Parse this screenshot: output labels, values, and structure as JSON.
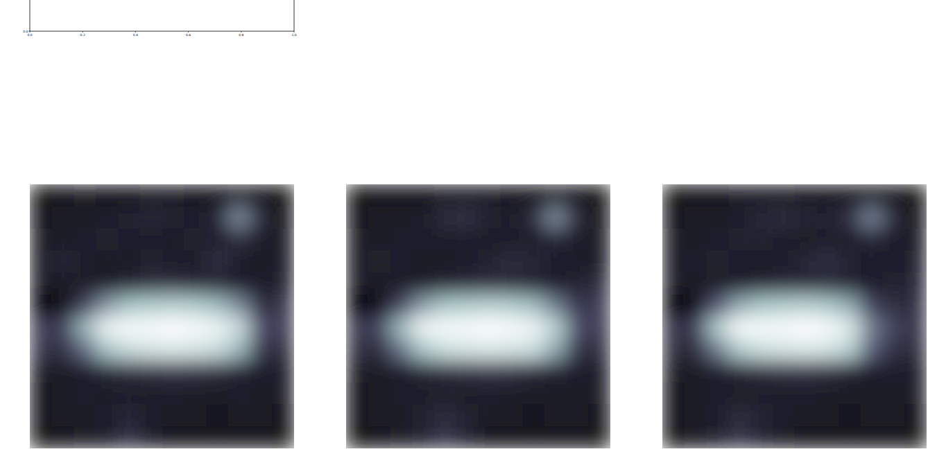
{
  "chart_data": [
    {
      "type": "line",
      "xlim": [
        0,
        1
      ],
      "ylim": [
        0,
        1
      ],
      "xticks": [
        {
          "value": 0,
          "label": "0.0"
        },
        {
          "value": 0.2,
          "label": "0.2"
        },
        {
          "value": 0.4,
          "label": "0.4"
        },
        {
          "value": 0.6,
          "label": "0.6"
        },
        {
          "value": 0.8,
          "label": "0.8"
        },
        {
          "value": 1,
          "label": "1.0"
        }
      ],
      "yticks": [
        {
          "value": 0,
          "label": "0.0"
        }
      ]
    },
    {
      "type": "heatmap",
      "color": "bone",
      "tick_labels": false,
      "cells": [
        [
          0.08,
          0.1,
          0.12,
          0.1,
          0.1,
          0.12,
          0.12,
          0.1,
          0.1,
          0.12,
          0.1,
          0.08
        ],
        [
          0.1,
          0.12,
          0.12,
          0.14,
          0.16,
          0.18,
          0.16,
          0.14,
          0.18,
          0.55,
          0.2,
          0.1
        ],
        [
          0.12,
          0.12,
          0.14,
          0.16,
          0.14,
          0.14,
          0.12,
          0.16,
          0.14,
          0.2,
          0.14,
          0.12
        ],
        [
          0.12,
          0.18,
          0.14,
          0.12,
          0.12,
          0.16,
          0.14,
          0.12,
          0.22,
          0.14,
          0.12,
          0.14
        ],
        [
          0.14,
          0.12,
          0.12,
          0.14,
          0.16,
          0.2,
          0.2,
          0.18,
          0.16,
          0.14,
          0.14,
          0.16
        ],
        [
          0.0,
          0.04,
          0.3,
          0.6,
          0.75,
          0.78,
          0.8,
          0.78,
          0.72,
          0.55,
          0.2,
          0.25
        ],
        [
          0.28,
          0.3,
          0.7,
          0.95,
          0.98,
          0.98,
          1.0,
          0.98,
          0.95,
          0.85,
          0.35,
          0.28
        ],
        [
          0.25,
          0.22,
          0.45,
          0.75,
          0.85,
          0.88,
          0.9,
          0.88,
          0.85,
          0.7,
          0.25,
          0.2
        ],
        [
          0.12,
          0.12,
          0.14,
          0.18,
          0.2,
          0.22,
          0.24,
          0.22,
          0.2,
          0.16,
          0.14,
          0.14
        ],
        [
          0.1,
          0.12,
          0.14,
          0.12,
          0.14,
          0.12,
          0.14,
          0.12,
          0.12,
          0.14,
          0.12,
          0.12
        ],
        [
          0.1,
          0.12,
          0.12,
          0.14,
          0.18,
          0.14,
          0.12,
          0.12,
          0.1,
          0.12,
          0.12,
          0.1
        ],
        [
          0.08,
          0.1,
          0.12,
          0.14,
          0.22,
          0.14,
          0.1,
          0.1,
          0.1,
          0.1,
          0.1,
          0.08
        ]
      ]
    },
    {
      "type": "heatmap",
      "color": "bone",
      "tick_labels": false,
      "cells": [
        [
          0.08,
          0.1,
          0.1,
          0.1,
          0.12,
          0.12,
          0.12,
          0.1,
          0.1,
          0.12,
          0.1,
          0.08
        ],
        [
          0.1,
          0.12,
          0.12,
          0.14,
          0.2,
          0.22,
          0.16,
          0.14,
          0.2,
          0.55,
          0.2,
          0.1
        ],
        [
          0.12,
          0.12,
          0.14,
          0.14,
          0.14,
          0.14,
          0.12,
          0.14,
          0.14,
          0.18,
          0.14,
          0.12
        ],
        [
          0.12,
          0.16,
          0.14,
          0.12,
          0.12,
          0.14,
          0.16,
          0.2,
          0.18,
          0.14,
          0.12,
          0.14
        ],
        [
          0.14,
          0.12,
          0.12,
          0.14,
          0.16,
          0.18,
          0.2,
          0.18,
          0.16,
          0.14,
          0.16,
          0.2
        ],
        [
          0.02,
          0.06,
          0.32,
          0.62,
          0.76,
          0.78,
          0.8,
          0.78,
          0.72,
          0.5,
          0.25,
          0.28
        ],
        [
          0.26,
          0.32,
          0.72,
          0.96,
          0.98,
          0.98,
          1.0,
          0.98,
          0.95,
          0.8,
          0.35,
          0.26
        ],
        [
          0.22,
          0.2,
          0.48,
          0.76,
          0.86,
          0.88,
          0.9,
          0.88,
          0.86,
          0.65,
          0.24,
          0.2
        ],
        [
          0.12,
          0.12,
          0.14,
          0.18,
          0.2,
          0.22,
          0.24,
          0.22,
          0.18,
          0.16,
          0.14,
          0.14
        ],
        [
          0.1,
          0.12,
          0.14,
          0.12,
          0.14,
          0.12,
          0.14,
          0.12,
          0.12,
          0.12,
          0.12,
          0.12
        ],
        [
          0.1,
          0.12,
          0.12,
          0.16,
          0.2,
          0.16,
          0.12,
          0.12,
          0.1,
          0.12,
          0.12,
          0.1
        ],
        [
          0.08,
          0.1,
          0.12,
          0.16,
          0.24,
          0.16,
          0.1,
          0.1,
          0.1,
          0.1,
          0.1,
          0.08
        ]
      ]
    },
    {
      "type": "heatmap",
      "color": "bone",
      "tick_labels": false,
      "cells": [
        [
          0.08,
          0.1,
          0.1,
          0.12,
          0.12,
          0.12,
          0.1,
          0.1,
          0.1,
          0.1,
          0.1,
          0.08
        ],
        [
          0.1,
          0.12,
          0.12,
          0.14,
          0.18,
          0.2,
          0.18,
          0.16,
          0.22,
          0.52,
          0.2,
          0.1
        ],
        [
          0.12,
          0.12,
          0.14,
          0.16,
          0.16,
          0.14,
          0.12,
          0.14,
          0.14,
          0.18,
          0.14,
          0.12
        ],
        [
          0.12,
          0.14,
          0.16,
          0.14,
          0.12,
          0.14,
          0.18,
          0.22,
          0.16,
          0.14,
          0.14,
          0.16
        ],
        [
          0.14,
          0.12,
          0.12,
          0.14,
          0.16,
          0.18,
          0.18,
          0.18,
          0.16,
          0.14,
          0.16,
          0.18
        ],
        [
          0.02,
          0.06,
          0.38,
          0.66,
          0.76,
          0.78,
          0.8,
          0.76,
          0.66,
          0.3,
          0.2,
          0.22
        ],
        [
          0.22,
          0.3,
          0.78,
          0.98,
          0.98,
          0.98,
          1.0,
          0.98,
          0.9,
          0.5,
          0.3,
          0.24
        ],
        [
          0.2,
          0.2,
          0.5,
          0.78,
          0.86,
          0.88,
          0.9,
          0.88,
          0.8,
          0.4,
          0.22,
          0.2
        ],
        [
          0.12,
          0.12,
          0.14,
          0.18,
          0.2,
          0.22,
          0.22,
          0.2,
          0.16,
          0.14,
          0.14,
          0.14
        ],
        [
          0.1,
          0.12,
          0.14,
          0.12,
          0.14,
          0.12,
          0.14,
          0.12,
          0.12,
          0.12,
          0.12,
          0.12
        ],
        [
          0.1,
          0.12,
          0.14,
          0.2,
          0.16,
          0.14,
          0.12,
          0.12,
          0.1,
          0.12,
          0.12,
          0.1
        ],
        [
          0.08,
          0.12,
          0.16,
          0.24,
          0.16,
          0.12,
          0.1,
          0.1,
          0.1,
          0.1,
          0.1,
          0.08
        ]
      ]
    }
  ]
}
